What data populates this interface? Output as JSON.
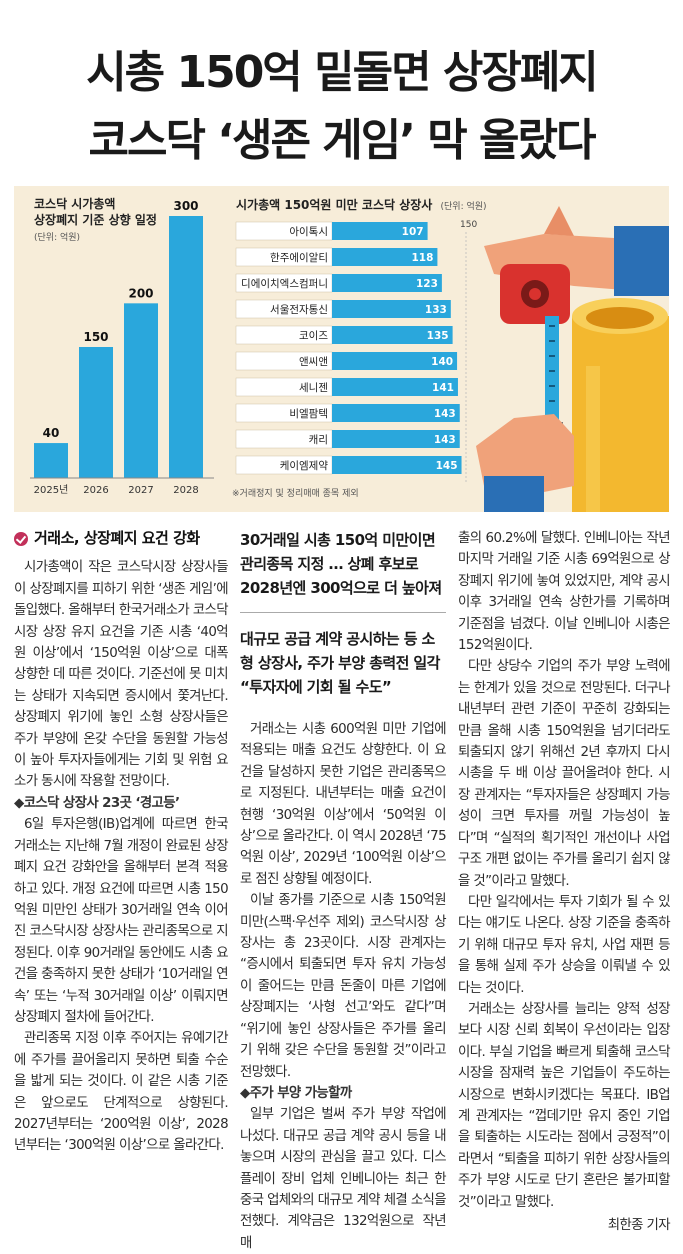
{
  "headline": {
    "line1": "시총 150억 밑돌면 상장폐지",
    "line2": "코스닥 ‘생존 게임’ 막 올랐다"
  },
  "graphic": {
    "left_chart": {
      "title_line1": "코스닥 시가총액",
      "title_line2": "상장폐지 기준 상향 일정",
      "unit": "(단위: 억원)"
    },
    "right_chart": {
      "title": "시가총액 150억원 미만 코스닥 상장사",
      "unit": "(단위: 억원)",
      "max_label": "150",
      "note": "※거래정지 및 정리매매 종목 제외"
    },
    "colors": {
      "bar_blue": "#2aa7dc",
      "background": "#f7edd9",
      "label_box": "#ffffff"
    }
  },
  "chart_data": [
    {
      "type": "bar",
      "title": "코스닥 시가총액 상장폐지 기준 상향 일정",
      "unit": "(단위: 억원)",
      "categories": [
        "2025년",
        "2026",
        "2027",
        "2028"
      ],
      "values": [
        40,
        150,
        200,
        300
      ],
      "ylim": [
        0,
        300
      ]
    },
    {
      "type": "bar",
      "orientation": "horizontal",
      "title": "시가총액 150억원 미만 코스닥 상장사",
      "unit": "(단위: 억원)",
      "categories": [
        "아이톡시",
        "한주에이알티",
        "디에이치엑스컴퍼니",
        "서울전자통신",
        "코이즈",
        "앤씨앤",
        "세니젠",
        "비엘팜텍",
        "캐리",
        "케이엠제약"
      ],
      "values": [
        107,
        118,
        123,
        133,
        135,
        140,
        141,
        143,
        143,
        145
      ],
      "xlim": [
        0,
        150
      ]
    }
  ],
  "article": {
    "section_head": "거래소, 상장폐지 요건 강화",
    "col1_paragraphs": [
      "시가총액이 작은 코스닥시장 상장사들이 상장폐지를 피하기 위한 ‘생존 게임’에 돌입했다. 올해부터 한국거래소가 코스닥시장 상장 유지 요건을 기존 시총 ‘40억원 이상’에서 ‘150억원 이상’으로 대폭 상향한 데 따른 것이다. 기준선에 못 미치는 상태가 지속되면 증시에서 쫓겨난다. 상장폐지 위기에 놓인 소형 상장사들은 주가 부양에 온갖 수단을 동원할 가능성이 높아 투자자들에게는 기회 및 위험 요소가 동시에 작용할 전망이다."
    ],
    "col1_sub": "◆코스닥 상장사 23곳 ‘경고등’",
    "col1_paragraphs2": [
      "6일 투자은행(IB)업계에 따르면 한국거래소는 지난해 7월 개정이 완료된 상장폐지 요건 강화안을 올해부터 본격 적용하고 있다. 개정 요건에 따르면 시총 150억원 미만인 상태가 30거래일 연속 이어진 코스닥시장 상장사는 관리종목으로 지정된다. 이후 90거래일 동안에도 시총 요건을 충족하지 못한 상태가 ‘10거래일 연속’ 또는 ‘누적 30거래일 이상’ 이뤄지면 상장폐지 절차에 들어간다.",
      "관리종목 지정 이후 주어지는 유예기간에 주가를 끌어올리지 못하면 퇴출 수순을 밟게 되는 것이다. 이 같은 시총 기준은 앞으로도 단계적으로 상향된다. 2027년부터는 ‘200억원 이상’, 2028년부터는 ‘300억원 이상’으로 올라간다."
    ],
    "deck1": "30거래일 시총 150억 미만이면 관리종목 지정 … 상폐 후보로 2028년엔 300억으로 더 높아져",
    "deck2": "대규모 공급 계약 공시하는 등 소형 상장사, 주가 부양 총력전 일각 “투자자에 기회 될 수도”",
    "col2_paragraphs": [
      "거래소는 시총 600억원 미만 기업에 적용되는 매출 요건도 상향한다. 이 요건을 달성하지 못한 기업은 관리종목으로 지정된다. 내년부터는 매출 요건이 현행 ‘30억원 이상’에서 ‘50억원 이상’으로 올라간다. 이 역시 2028년 ‘75억원 이상’, 2029년 ‘100억원 이상’으로 점진 상향될 예정이다.",
      "이날 종가를 기준으로 시총 150억원 미만(스팩·우선주 제외) 코스닥시장 상장사는 총 23곳이다. 시장 관계자는 “증시에서 퇴출되면 투자 유치 가능성이 줄어드는 만큼 돈줄이 마른 기업에 상장폐지는 ‘사형 선고’와도 같다”며 “위기에 놓인 상장사들은 주가를 올리기 위해 갖은 수단을 동원할 것”이라고 전망했다."
    ],
    "col2_sub": "◆주가 부양 가능할까",
    "col2_paragraphs2": [
      "일부 기업은 벌써 주가 부양 작업에 나섰다. 대규모 공급 계약 공시 등을 내놓으며 시장의 관심을 끌고 있다. 디스플레이 장비 업체 인베니아는 최근 한 중국 업체와의 대규모 계약 체결 소식을 전했다. 계약금은 132억원으로 작년 매"
    ],
    "col3_paragraphs": [
      "출의 60.2%에 달했다. 인베니아는 작년 마지막 거래일 기준 시총 69억원으로 상장폐지 위기에 놓여 있었지만, 계약 공시 이후 3거래일 연속 상한가를 기록하며 기준점을 넘겼다. 이날 인베니아 시총은 152억원이다.",
      "다만 상당수 기업의 주가 부양 노력에는 한계가 있을 것으로 전망된다. 더구나 내년부터 관련 기준이 꾸준히 강화되는 만큼 올해 시총 150억원을 넘기더라도 퇴출되지 않기 위해선 2년 후까지 다시 시총을 두 배 이상 끌어올려야 한다. 시장 관계자는 “투자자들은 상장폐지 가능성이 크면 투자를 꺼릴 가능성이 높다”며 “실적의 획기적인 개선이나 사업 구조 개편 없이는 주가를 올리기 쉽지 않을 것”이라고 말했다.",
      "다만 일각에서는 투자 기회가 될 수 있다는 얘기도 나온다. 상장 기준을 충족하기 위해 대규모 투자 유치, 사업 재편 등을 통해 실제 주가 상승을 이뤄낼 수 있다는 것이다.",
      "거래소는 상장사를 늘리는 양적 성장보다 시장 신뢰 회복이 우선이라는 입장이다. 부실 기업을 빠르게 퇴출해 코스닥시장을 잠재력 높은 기업들이 주도하는 시장으로 변화시키겠다는 목표다. IB업계 관계자는 “껍데기만 유지 중인 기업을 퇴출하는 시도라는 점에서 긍정적”이라면서 “퇴출을 피하기 위한 상장사들의 주가 부양 시도로 단기 혼란은 불가피할 것”이라고 말했다."
    ],
    "byline": "최한종 기자"
  }
}
